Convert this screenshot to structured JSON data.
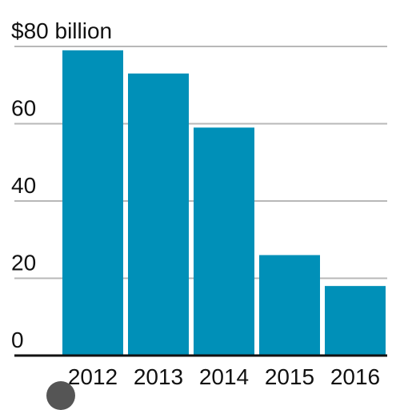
{
  "chart_data": {
    "type": "bar",
    "categories": [
      "2012",
      "2013",
      "2014",
      "2015",
      "2016"
    ],
    "values": [
      79,
      73,
      59,
      26,
      18
    ],
    "ylim": [
      0,
      80
    ],
    "yticks": [
      {
        "value": 0,
        "label": "0"
      },
      {
        "value": 20,
        "label": "20"
      },
      {
        "value": 40,
        "label": "40"
      },
      {
        "value": 60,
        "label": "60"
      },
      {
        "value": 80,
        "label": "$80 billion"
      }
    ],
    "grid": true,
    "bar_color": "#0090b8",
    "grid_color": "#b8b8b8",
    "axis_color": "#111111"
  }
}
